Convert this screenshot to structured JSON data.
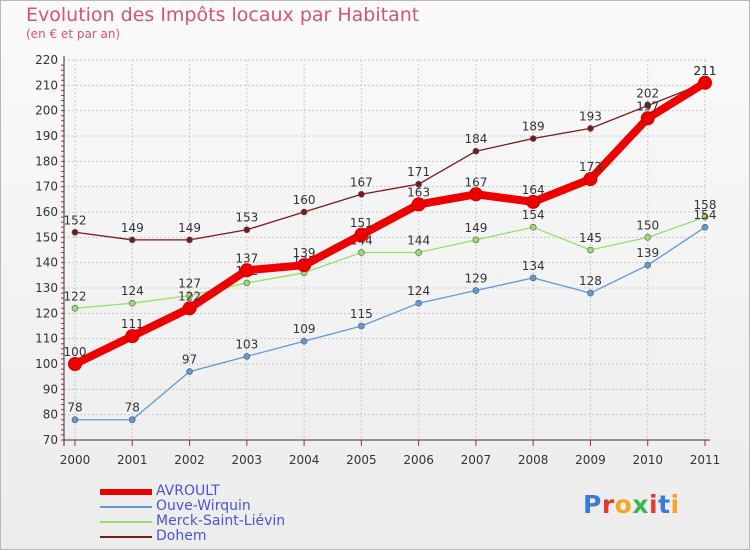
{
  "header": {
    "title": "Evolution des Impôts locaux par Habitant",
    "subtitle": "(en € et par an)"
  },
  "chart_data": {
    "type": "line",
    "title": "Evolution des Impôts locaux par Habitant",
    "subtitle": "(en € et par an)",
    "xlabel": "",
    "ylabel": "",
    "categories": [
      "2000",
      "2001",
      "2002",
      "2003",
      "2004",
      "2005",
      "2006",
      "2007",
      "2008",
      "2009",
      "2010",
      "2011"
    ],
    "ylim": [
      70,
      220
    ],
    "yticks": [
      70,
      80,
      90,
      100,
      110,
      120,
      130,
      140,
      150,
      160,
      170,
      180,
      190,
      200,
      210,
      220
    ],
    "grid": true,
    "legend": "bottom-left",
    "series": [
      {
        "name": "Dohem",
        "color": "#7a1a1a",
        "values": [
          152,
          149,
          149,
          153,
          160,
          167,
          171,
          184,
          189,
          193,
          202,
          211
        ],
        "labels": [
          "152",
          "149",
          "149",
          "153",
          "160",
          "167",
          "171",
          "184",
          "189",
          "193",
          "202",
          "211"
        ]
      },
      {
        "name": "Merck-Saint-Liévin",
        "color": "#96e06a",
        "values": [
          122,
          124,
          127,
          132,
          136,
          144,
          144,
          149,
          154,
          145,
          150,
          158
        ],
        "labels": [
          "122",
          "124",
          "127",
          "132",
          "136",
          "144",
          "144",
          "149",
          "154",
          "145",
          "150",
          "158"
        ]
      },
      {
        "name": "Ouve-Wirquin",
        "color": "#5d9ad6",
        "values": [
          78,
          78,
          97,
          103,
          109,
          115,
          124,
          129,
          134,
          128,
          139,
          154
        ],
        "labels": [
          "78",
          "78",
          "97",
          "103",
          "109",
          "115",
          "124",
          "129",
          "134",
          "128",
          "139",
          "154"
        ]
      },
      {
        "name": "AVROULT",
        "color": "#ee0000",
        "values": [
          100,
          111,
          122,
          137,
          139,
          151,
          163,
          167,
          164,
          173,
          197,
          211
        ],
        "labels": [
          "100",
          "111",
          "122",
          "137",
          "139",
          "151",
          "163",
          "167",
          "164",
          "173",
          "197",
          "211"
        ]
      }
    ]
  },
  "legend": {
    "items": [
      {
        "name": "AVROULT",
        "color": "#ee0000"
      },
      {
        "name": "Ouve-Wirquin",
        "color": "#5d9ad6"
      },
      {
        "name": "Merck-Saint-Liévin",
        "color": "#96e06a"
      },
      {
        "name": "Dohem",
        "color": "#7a1a1a"
      }
    ]
  },
  "logo": {
    "text": "Proxiti",
    "colors": [
      "#3a7bd5",
      "#e03c31",
      "#f5a623",
      "#3ab54a",
      "#e03c31",
      "#3a7bd5",
      "#f5a623"
    ]
  }
}
